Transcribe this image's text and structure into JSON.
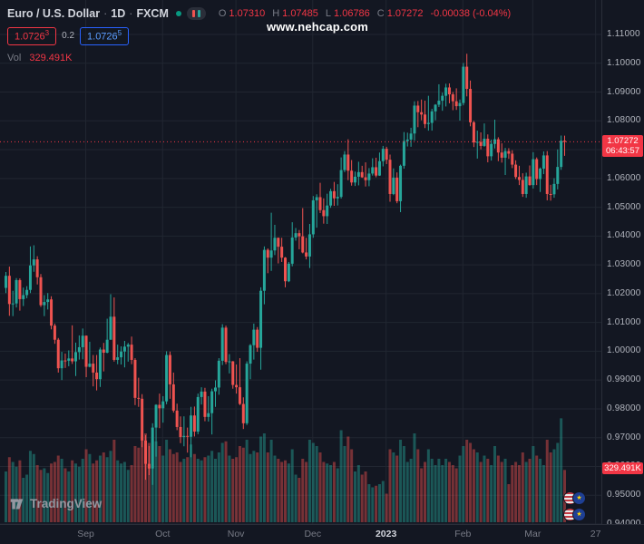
{
  "header": {
    "symbol": "Euro / U.S. Dollar",
    "sep": "·",
    "interval": "1D",
    "exchange": "FXCM",
    "ohlc": {
      "o_label": "O",
      "o": "1.07310",
      "h_label": "H",
      "h": "1.07485",
      "l_label": "L",
      "l": "1.06786",
      "c_label": "C",
      "c": "1.07272",
      "change": "-0.00038 (-0.04%)"
    },
    "sell": {
      "base": "1.0726",
      "sup": "3"
    },
    "spread": "0.2",
    "buy": {
      "base": "1.0726",
      "sup": "5"
    },
    "vol_label": "Vol",
    "vol_value": "329.491K"
  },
  "watermark": "www.nehcap.com",
  "price_label": {
    "price": "1.07272",
    "countdown": "06:43:57"
  },
  "volume_axis_label": "329.491K",
  "logo": {
    "text": "TradingView"
  },
  "colors": {
    "background": "#131722",
    "up": "#26a69a",
    "down": "#ef5350",
    "vol_up": "rgba(38,166,154,0.45)",
    "vol_down": "rgba(239,83,80,0.45)",
    "grid": "#212631",
    "price_line": "#f23645",
    "accent_red": "#f23645",
    "accent_blue": "#2962ff"
  },
  "chart_data": {
    "type": "candlestick",
    "symbol": "EUR/USD",
    "interval": "1D",
    "exchange": "FXCM",
    "ylim": [
      0.94,
      1.11
    ],
    "grid": true,
    "price_ticks": [
      "1.11000",
      "1.10000",
      "1.09000",
      "1.08000",
      "1.07000",
      "1.06000",
      "1.05000",
      "1.04000",
      "1.03000",
      "1.02000",
      "1.01000",
      "1.00000",
      "0.99000",
      "0.98000",
      "0.97000",
      "0.96000",
      "0.95000",
      "0.94000"
    ],
    "time_axis": [
      {
        "label": "Sep",
        "i": 23
      },
      {
        "label": "Oct",
        "i": 45
      },
      {
        "label": "Nov",
        "i": 66
      },
      {
        "label": "Dec",
        "i": 88
      },
      {
        "label": "2023",
        "i": 109,
        "major": true
      },
      {
        "label": "Feb",
        "i": 131
      },
      {
        "label": "Mar",
        "i": 151
      },
      {
        "label": "27",
        "i": 169
      }
    ],
    "volume_unit": "K",
    "candles_format": [
      "date",
      "open",
      "high",
      "low",
      "close",
      "volume_K"
    ],
    "candles": [
      [
        "08-01",
        1.022,
        1.0275,
        1.0202,
        1.0262,
        320
      ],
      [
        "08-02",
        1.0262,
        1.0294,
        1.0123,
        1.0164,
        410
      ],
      [
        "08-03",
        1.0164,
        1.021,
        1.0122,
        1.0166,
        380
      ],
      [
        "08-04",
        1.0166,
        1.0254,
        1.0152,
        1.0247,
        350
      ],
      [
        "08-05",
        1.0247,
        1.0253,
        1.0141,
        1.0181,
        390
      ],
      [
        "08-08",
        1.0181,
        1.0221,
        1.0157,
        1.0195,
        280
      ],
      [
        "08-09",
        1.0195,
        1.0226,
        1.0184,
        1.0213,
        300
      ],
      [
        "08-10",
        1.0213,
        1.0364,
        1.0202,
        1.0298,
        450
      ],
      [
        "08-11",
        1.0298,
        1.0368,
        1.0276,
        1.0319,
        430
      ],
      [
        "08-12",
        1.0319,
        1.033,
        1.0232,
        1.0257,
        360
      ],
      [
        "08-15",
        1.0257,
        1.0268,
        1.0154,
        1.016,
        330
      ],
      [
        "08-16",
        1.016,
        1.0195,
        1.0122,
        1.0171,
        340
      ],
      [
        "08-17",
        1.0171,
        1.0202,
        1.0145,
        1.018,
        310
      ],
      [
        "08-18",
        1.018,
        1.0191,
        1.0076,
        1.0089,
        370
      ],
      [
        "08-19",
        1.0089,
        1.0096,
        1.0026,
        1.004,
        380
      ],
      [
        "08-22",
        1.004,
        1.0046,
        0.9926,
        0.9941,
        420
      ],
      [
        "08-23",
        0.9941,
        0.9998,
        0.99,
        0.9968,
        400
      ],
      [
        "08-24",
        0.9968,
        0.9992,
        0.9942,
        0.9967,
        340
      ],
      [
        "08-25",
        0.9967,
        1.0003,
        0.9948,
        0.9975,
        320
      ],
      [
        "08-26",
        0.9975,
        1.009,
        0.9956,
        0.9965,
        390
      ],
      [
        "08-29",
        0.9965,
        1.003,
        0.9914,
        0.9997,
        370
      ],
      [
        "08-30",
        0.9997,
        1.0055,
        0.9971,
        1.0014,
        350
      ],
      [
        "08-31",
        1.0014,
        1.0079,
        0.9972,
        1.0054,
        400
      ],
      [
        "09-01",
        1.0054,
        1.0055,
        0.991,
        0.9946,
        460
      ],
      [
        "09-02",
        0.9946,
        1.0033,
        0.9944,
        0.9957,
        430
      ],
      [
        "09-05",
        0.9957,
        0.9987,
        0.9878,
        0.9926,
        370
      ],
      [
        "09-06",
        0.9926,
        0.9987,
        0.9864,
        0.9903,
        390
      ],
      [
        "09-07",
        0.9903,
        1.0013,
        0.9876,
        1.0006,
        420
      ],
      [
        "09-08",
        1.0006,
        1.0029,
        0.993,
        0.9995,
        440
      ],
      [
        "09-09",
        0.9995,
        1.0113,
        0.9993,
        1.004,
        410
      ],
      [
        "09-12",
        1.004,
        1.0198,
        1.004,
        1.012,
        450
      ],
      [
        "09-13",
        1.012,
        1.0187,
        0.9964,
        0.997,
        520
      ],
      [
        "09-14",
        0.997,
        1.0023,
        0.9955,
        0.9979,
        390
      ],
      [
        "09-15",
        0.9979,
        1.0017,
        0.9954,
        0.9999,
        370
      ],
      [
        "09-16",
        0.9999,
        1.0036,
        0.9944,
        1.0016,
        380
      ],
      [
        "09-19",
        1.0016,
        1.0029,
        0.9964,
        1.0023,
        330
      ],
      [
        "09-20",
        1.0023,
        1.0051,
        0.9955,
        0.997,
        360
      ],
      [
        "09-21",
        0.997,
        0.9976,
        0.9813,
        0.9838,
        480
      ],
      [
        "09-22",
        0.9838,
        0.9908,
        0.9807,
        0.9835,
        470
      ],
      [
        "09-23",
        0.9835,
        0.9851,
        0.9667,
        0.969,
        540
      ],
      [
        "09-26",
        0.969,
        0.9709,
        0.9554,
        0.9609,
        560
      ],
      [
        "09-27",
        0.9609,
        0.9671,
        0.957,
        0.9593,
        500
      ],
      [
        "09-28",
        0.9593,
        0.975,
        0.9536,
        0.9735,
        520
      ],
      [
        "09-29",
        0.9735,
        0.9816,
        0.9634,
        0.9814,
        510
      ],
      [
        "09-30",
        0.9814,
        0.9853,
        0.9733,
        0.9802,
        480
      ],
      [
        "10-03",
        0.9802,
        0.9844,
        0.9752,
        0.9826,
        420
      ],
      [
        "10-04",
        0.9826,
        1.0,
        0.9816,
        0.9987,
        520
      ],
      [
        "10-05",
        0.9987,
        0.9999,
        0.9835,
        0.9885,
        460
      ],
      [
        "10-06",
        0.9885,
        0.9926,
        0.9787,
        0.9794,
        430
      ],
      [
        "10-07",
        0.9794,
        0.9818,
        0.9726,
        0.9737,
        440
      ],
      [
        "10-10",
        0.9737,
        0.9774,
        0.9681,
        0.9702,
        380
      ],
      [
        "10-11",
        0.9702,
        0.9774,
        0.967,
        0.9706,
        400
      ],
      [
        "10-12",
        0.9706,
        0.9735,
        0.9648,
        0.9703,
        410
      ],
      [
        "10-13",
        0.9703,
        0.9807,
        0.9632,
        0.9777,
        490
      ],
      [
        "10-14",
        0.9777,
        0.9808,
        0.9704,
        0.9721,
        430
      ],
      [
        "10-17",
        0.9721,
        0.9853,
        0.9712,
        0.9841,
        400
      ],
      [
        "10-18",
        0.9841,
        0.9875,
        0.9815,
        0.986,
        390
      ],
      [
        "10-19",
        0.986,
        0.9873,
        0.9757,
        0.9772,
        410
      ],
      [
        "10-20",
        0.9772,
        0.9844,
        0.9756,
        0.9785,
        420
      ],
      [
        "10-21",
        0.9785,
        0.987,
        0.9711,
        0.9861,
        450
      ],
      [
        "10-24",
        0.9861,
        0.9899,
        0.9807,
        0.9874,
        400
      ],
      [
        "10-25",
        0.9874,
        0.9976,
        0.9849,
        0.9967,
        440
      ],
      [
        "10-26",
        0.9967,
        1.0094,
        0.9952,
        1.0082,
        500
      ],
      [
        "10-27",
        1.0082,
        1.0089,
        0.9955,
        0.9963,
        510
      ],
      [
        "10-28",
        0.9963,
        0.999,
        0.9923,
        0.9965,
        420
      ],
      [
        "10-31",
        0.9965,
        0.9966,
        0.987,
        0.9883,
        400
      ],
      [
        "11-01",
        0.9883,
        0.9954,
        0.9853,
        0.9875,
        410
      ],
      [
        "11-02",
        0.9875,
        0.9976,
        0.9813,
        0.9817,
        480
      ],
      [
        "11-03",
        0.9817,
        0.984,
        0.973,
        0.975,
        470
      ],
      [
        "11-04",
        0.975,
        0.9965,
        0.9744,
        0.9957,
        520
      ],
      [
        "11-07",
        0.9957,
        1.0025,
        0.9903,
        1.0021,
        430
      ],
      [
        "11-08",
        1.0021,
        1.0096,
        0.9971,
        1.0075,
        450
      ],
      [
        "11-09",
        1.0075,
        1.0084,
        0.9998,
        1.0012,
        440
      ],
      [
        "11-10",
        1.0012,
        1.0222,
        0.9936,
        1.021,
        540
      ],
      [
        "11-11",
        1.021,
        1.0364,
        1.0163,
        1.0352,
        560
      ],
      [
        "11-14",
        1.0352,
        1.0357,
        1.0271,
        1.0325,
        440
      ],
      [
        "11-15",
        1.0325,
        1.0481,
        1.0279,
        1.035,
        520
      ],
      [
        "11-16",
        1.035,
        1.0439,
        1.0334,
        1.0394,
        420
      ],
      [
        "11-17",
        1.0394,
        1.0395,
        1.0305,
        1.0363,
        400
      ],
      [
        "11-18",
        1.0363,
        1.0394,
        1.031,
        1.0325,
        380
      ],
      [
        "11-21",
        1.0325,
        1.0327,
        1.0222,
        1.0243,
        390
      ],
      [
        "11-22",
        1.0243,
        1.031,
        1.024,
        1.0304,
        370
      ],
      [
        "11-23",
        1.0304,
        1.0448,
        1.0295,
        1.0395,
        460
      ],
      [
        "11-24",
        1.0395,
        1.0428,
        1.0384,
        1.041,
        300
      ],
      [
        "11-25",
        1.041,
        1.0421,
        1.0354,
        1.0399,
        280
      ],
      [
        "11-28",
        1.0399,
        1.0497,
        1.034,
        1.0343,
        400
      ],
      [
        "11-29",
        1.0343,
        1.0394,
        1.0319,
        1.0329,
        380
      ],
      [
        "11-30",
        1.0329,
        1.0442,
        1.0289,
        1.0406,
        520
      ],
      [
        "12-01",
        1.0406,
        1.0539,
        1.0394,
        1.0524,
        500
      ],
      [
        "12-02",
        1.0524,
        1.0545,
        1.0429,
        1.0535,
        480
      ],
      [
        "12-05",
        1.0535,
        1.0585,
        1.048,
        1.049,
        440
      ],
      [
        "12-06",
        1.049,
        1.0531,
        1.0443,
        1.0469,
        380
      ],
      [
        "12-07",
        1.0469,
        1.0547,
        1.0442,
        1.0506,
        370
      ],
      [
        "12-08",
        1.0506,
        1.0564,
        1.0498,
        1.0556,
        360
      ],
      [
        "12-09",
        1.0556,
        1.0588,
        1.0505,
        1.0531,
        380
      ],
      [
        "12-12",
        1.0531,
        1.058,
        1.0506,
        1.0536,
        340
      ],
      [
        "12-13",
        1.0536,
        1.0673,
        1.053,
        1.0629,
        580
      ],
      [
        "12-14",
        1.0629,
        1.0695,
        1.0622,
        1.0683,
        480
      ],
      [
        "12-15",
        1.0683,
        1.0736,
        1.0594,
        1.0627,
        540
      ],
      [
        "12-16",
        1.0627,
        1.0664,
        1.0575,
        1.0586,
        460
      ],
      [
        "12-19",
        1.0586,
        1.0624,
        1.0574,
        1.0606,
        320
      ],
      [
        "12-20",
        1.0606,
        1.0658,
        1.0576,
        1.0622,
        360
      ],
      [
        "12-21",
        1.0622,
        1.0644,
        1.0602,
        1.0604,
        300
      ],
      [
        "12-22",
        1.0604,
        1.0656,
        1.0572,
        1.0594,
        320
      ],
      [
        "12-23",
        1.0594,
        1.0636,
        1.0573,
        1.0617,
        240
      ],
      [
        "12-27",
        1.0617,
        1.067,
        1.061,
        1.0639,
        220
      ],
      [
        "12-28",
        1.0639,
        1.0672,
        1.0604,
        1.061,
        230
      ],
      [
        "12-29",
        1.061,
        1.069,
        1.0609,
        1.066,
        240
      ],
      [
        "12-30",
        1.066,
        1.0713,
        1.0642,
        1.0703,
        260
      ],
      [
        "01-02",
        1.0703,
        1.071,
        1.065,
        1.0665,
        180
      ],
      [
        "01-03",
        1.0665,
        1.0683,
        1.0519,
        1.0546,
        460
      ],
      [
        "01-04",
        1.0546,
        1.0635,
        1.0542,
        1.0603,
        440
      ],
      [
        "01-05",
        1.0603,
        1.0621,
        1.0514,
        1.0521,
        420
      ],
      [
        "01-06",
        1.0521,
        1.0648,
        1.0483,
        1.0644,
        520
      ],
      [
        "01-09",
        1.0644,
        1.0761,
        1.0634,
        1.073,
        480
      ],
      [
        "01-10",
        1.073,
        1.0759,
        1.0711,
        1.0735,
        380
      ],
      [
        "01-11",
        1.0735,
        1.0776,
        1.071,
        1.0756,
        400
      ],
      [
        "01-12",
        1.0756,
        1.0868,
        1.0731,
        1.0853,
        560
      ],
      [
        "01-13",
        1.0853,
        1.0869,
        1.0778,
        1.083,
        460
      ],
      [
        "01-16",
        1.083,
        1.0874,
        1.0802,
        1.0822,
        340
      ],
      [
        "01-17",
        1.0822,
        1.087,
        1.0775,
        1.0789,
        380
      ],
      [
        "01-18",
        1.0789,
        1.0887,
        1.0766,
        1.0793,
        460
      ],
      [
        "01-19",
        1.0793,
        1.0842,
        1.0766,
        1.0833,
        400
      ],
      [
        "01-20",
        1.0833,
        1.0858,
        1.0802,
        1.0856,
        360
      ],
      [
        "01-23",
        1.0856,
        1.0927,
        1.0848,
        1.087,
        400
      ],
      [
        "01-24",
        1.087,
        1.0898,
        1.0835,
        1.0887,
        360
      ],
      [
        "01-25",
        1.0887,
        1.0929,
        1.085,
        1.0916,
        400
      ],
      [
        "01-26",
        1.0916,
        1.093,
        1.0861,
        1.0892,
        380
      ],
      [
        "01-27",
        1.0892,
        1.09,
        1.0837,
        1.0868,
        360
      ],
      [
        "01-30",
        1.0868,
        1.0913,
        1.0838,
        1.0851,
        340
      ],
      [
        "01-31",
        1.0851,
        1.0874,
        1.0801,
        1.0862,
        420
      ],
      [
        "02-01",
        1.0862,
        1.1001,
        1.0854,
        1.0988,
        480
      ],
      [
        "02-02",
        1.0988,
        1.1033,
        1.0885,
        1.0911,
        520
      ],
      [
        "02-03",
        1.0911,
        1.094,
        1.0781,
        1.0795,
        500
      ],
      [
        "02-06",
        1.0795,
        1.08,
        1.0709,
        1.0725,
        460
      ],
      [
        "02-07",
        1.0725,
        1.0766,
        1.0669,
        1.0727,
        440
      ],
      [
        "02-08",
        1.0727,
        1.076,
        1.0701,
        1.0713,
        380
      ],
      [
        "02-09",
        1.0713,
        1.0791,
        1.071,
        1.0738,
        420
      ],
      [
        "02-10",
        1.0738,
        1.0753,
        1.0656,
        1.0677,
        400
      ],
      [
        "02-13",
        1.0677,
        1.0735,
        1.0662,
        1.072,
        360
      ],
      [
        "02-14",
        1.072,
        1.0804,
        1.0704,
        1.0736,
        480
      ],
      [
        "02-15",
        1.0736,
        1.0743,
        1.066,
        1.069,
        420
      ],
      [
        "02-16",
        1.069,
        1.0722,
        1.0655,
        1.0672,
        380
      ],
      [
        "02-17",
        1.0672,
        1.0706,
        1.0612,
        1.0695,
        400
      ],
      [
        "02-20",
        1.0695,
        1.0705,
        1.0668,
        1.0686,
        240
      ],
      [
        "02-21",
        1.0686,
        1.0698,
        1.0636,
        1.0648,
        360
      ],
      [
        "02-22",
        1.0648,
        1.0663,
        1.0598,
        1.0605,
        380
      ],
      [
        "02-23",
        1.0605,
        1.0644,
        1.0577,
        1.0595,
        360
      ],
      [
        "02-24",
        1.0595,
        1.0618,
        1.0536,
        1.0546,
        440
      ],
      [
        "02-27",
        1.0546,
        1.062,
        1.0533,
        1.0607,
        380
      ],
      [
        "02-28",
        1.0607,
        1.0645,
        1.0575,
        1.0577,
        400
      ],
      [
        "03-01",
        1.0577,
        1.0691,
        1.0565,
        1.0667,
        480
      ],
      [
        "03-02",
        1.0667,
        1.0673,
        1.0577,
        1.0598,
        420
      ],
      [
        "03-03",
        1.0598,
        1.0638,
        1.0553,
        1.0634,
        400
      ],
      [
        "03-06",
        1.0634,
        1.0694,
        1.0615,
        1.068,
        360
      ],
      [
        "03-07",
        1.068,
        1.0695,
        1.0524,
        1.0546,
        520
      ],
      [
        "03-08",
        1.0546,
        1.0578,
        1.0523,
        1.0545,
        440
      ],
      [
        "03-09",
        1.0545,
        1.0601,
        1.0533,
        1.0581,
        460
      ],
      [
        "03-10",
        1.0581,
        1.0701,
        1.0562,
        1.064,
        500
      ],
      [
        "03-13",
        1.064,
        1.0749,
        1.063,
        1.0731,
        655
      ],
      [
        "03-14",
        1.0731,
        1.07485,
        1.06786,
        1.07272,
        329.491
      ]
    ]
  }
}
